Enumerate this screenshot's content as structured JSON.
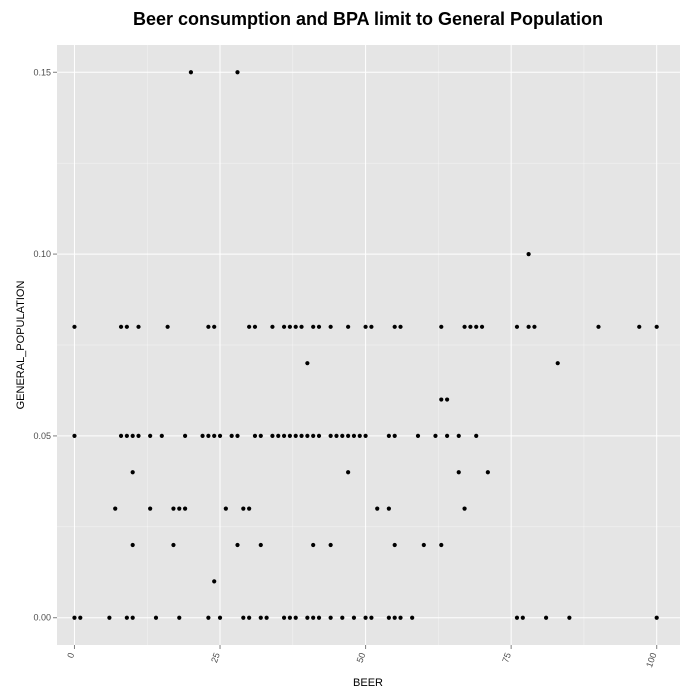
{
  "chart_data": {
    "type": "scatter",
    "title": "Beer consumption and BPA limit to General Population",
    "xlabel": "BEER",
    "ylabel": "GENERAL_POPULATION",
    "xlim": [
      -3,
      104
    ],
    "ylim": [
      -0.0075,
      0.1575
    ],
    "x_ticks": [
      0,
      25,
      50,
      75,
      100
    ],
    "x_tick_labels": [
      "0",
      "25",
      "50",
      "75",
      "100"
    ],
    "y_ticks": [
      0.0,
      0.05,
      0.1,
      0.15
    ],
    "y_tick_labels": [
      "0.00",
      "0.05",
      "0.10",
      "0.15"
    ],
    "grid": true,
    "panel_color": "#e5e5e5",
    "grid_color": "#ffffff",
    "point_color": "#000000",
    "points": [
      [
        0,
        0.08
      ],
      [
        0,
        0.05
      ],
      [
        0,
        0
      ],
      [
        1,
        0
      ],
      [
        20,
        0.15
      ],
      [
        28,
        0.15
      ],
      [
        78,
        0.1
      ],
      [
        40,
        0.07
      ],
      [
        83,
        0.07
      ],
      [
        63,
        0.06
      ],
      [
        64,
        0.06
      ],
      [
        9,
        0.08
      ],
      [
        8,
        0.08
      ],
      [
        11,
        0.08
      ],
      [
        16,
        0.08
      ],
      [
        23,
        0.08
      ],
      [
        24,
        0.08
      ],
      [
        30,
        0.08
      ],
      [
        31,
        0.08
      ],
      [
        34,
        0.08
      ],
      [
        36,
        0.08
      ],
      [
        37,
        0.08
      ],
      [
        38,
        0.08
      ],
      [
        39,
        0.08
      ],
      [
        41,
        0.08
      ],
      [
        42,
        0.08
      ],
      [
        44,
        0.08
      ],
      [
        47,
        0.08
      ],
      [
        50,
        0.08
      ],
      [
        51,
        0.08
      ],
      [
        55,
        0.08
      ],
      [
        56,
        0.08
      ],
      [
        63,
        0.08
      ],
      [
        67,
        0.08
      ],
      [
        68,
        0.08
      ],
      [
        69,
        0.08
      ],
      [
        70,
        0.08
      ],
      [
        76,
        0.08
      ],
      [
        78,
        0.08
      ],
      [
        79,
        0.08
      ],
      [
        90,
        0.08
      ],
      [
        97,
        0.08
      ],
      [
        100,
        0.08
      ],
      [
        8,
        0.05
      ],
      [
        9,
        0.05
      ],
      [
        10,
        0.05
      ],
      [
        11,
        0.05
      ],
      [
        13,
        0.05
      ],
      [
        15,
        0.05
      ],
      [
        19,
        0.05
      ],
      [
        22,
        0.05
      ],
      [
        23,
        0.05
      ],
      [
        24,
        0.05
      ],
      [
        25,
        0.05
      ],
      [
        27,
        0.05
      ],
      [
        28,
        0.05
      ],
      [
        31,
        0.05
      ],
      [
        32,
        0.05
      ],
      [
        34,
        0.05
      ],
      [
        35,
        0.05
      ],
      [
        36,
        0.05
      ],
      [
        37,
        0.05
      ],
      [
        38,
        0.05
      ],
      [
        39,
        0.05
      ],
      [
        40,
        0.05
      ],
      [
        41,
        0.05
      ],
      [
        42,
        0.05
      ],
      [
        44,
        0.05
      ],
      [
        45,
        0.05
      ],
      [
        46,
        0.05
      ],
      [
        47,
        0.05
      ],
      [
        48,
        0.05
      ],
      [
        49,
        0.05
      ],
      [
        50,
        0.05
      ],
      [
        54,
        0.05
      ],
      [
        55,
        0.05
      ],
      [
        59,
        0.05
      ],
      [
        62,
        0.05
      ],
      [
        64,
        0.05
      ],
      [
        66,
        0.05
      ],
      [
        69,
        0.05
      ],
      [
        10,
        0.04
      ],
      [
        47,
        0.04
      ],
      [
        66,
        0.04
      ],
      [
        71,
        0.04
      ],
      [
        7,
        0.03
      ],
      [
        13,
        0.03
      ],
      [
        17,
        0.03
      ],
      [
        18,
        0.03
      ],
      [
        19,
        0.03
      ],
      [
        26,
        0.03
      ],
      [
        29,
        0.03
      ],
      [
        30,
        0.03
      ],
      [
        52,
        0.03
      ],
      [
        54,
        0.03
      ],
      [
        67,
        0.03
      ],
      [
        10,
        0.02
      ],
      [
        17,
        0.02
      ],
      [
        28,
        0.02
      ],
      [
        32,
        0.02
      ],
      [
        41,
        0.02
      ],
      [
        44,
        0.02
      ],
      [
        55,
        0.02
      ],
      [
        60,
        0.02
      ],
      [
        63,
        0.02
      ],
      [
        24,
        0.01
      ],
      [
        6,
        0
      ],
      [
        9,
        0
      ],
      [
        10,
        0
      ],
      [
        14,
        0
      ],
      [
        18,
        0
      ],
      [
        23,
        0
      ],
      [
        25,
        0
      ],
      [
        29,
        0
      ],
      [
        30,
        0
      ],
      [
        32,
        0
      ],
      [
        33,
        0
      ],
      [
        36,
        0
      ],
      [
        37,
        0
      ],
      [
        38,
        0
      ],
      [
        40,
        0
      ],
      [
        41,
        0
      ],
      [
        42,
        0
      ],
      [
        44,
        0
      ],
      [
        46,
        0
      ],
      [
        48,
        0
      ],
      [
        50,
        0
      ],
      [
        51,
        0
      ],
      [
        54,
        0
      ],
      [
        55,
        0
      ],
      [
        56,
        0
      ],
      [
        58,
        0
      ],
      [
        76,
        0
      ],
      [
        77,
        0
      ],
      [
        81,
        0
      ],
      [
        85,
        0
      ],
      [
        100,
        0
      ]
    ]
  }
}
